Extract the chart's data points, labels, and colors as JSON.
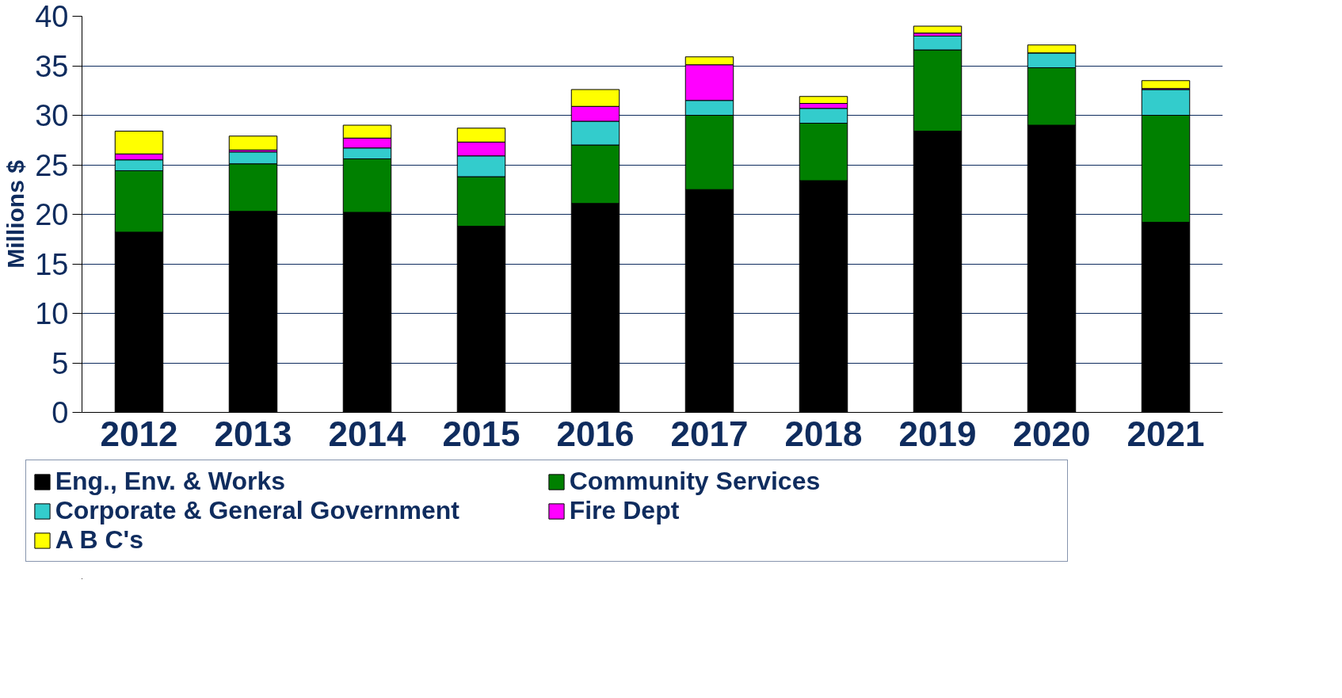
{
  "chart_data": {
    "type": "bar",
    "stacked": true,
    "ylabel": "Millions $",
    "categories": [
      "2012",
      "2013",
      "2014",
      "2015",
      "2016",
      "2017",
      "2018",
      "2019",
      "2020",
      "2021"
    ],
    "series": [
      {
        "name": "Eng., Env. & Works",
        "color": "#000000",
        "values": [
          18.2,
          20.3,
          20.2,
          18.8,
          21.1,
          22.5,
          23.4,
          28.4,
          29.0,
          19.2
        ]
      },
      {
        "name": "Community Services",
        "color": "#008000",
        "values": [
          6.2,
          4.8,
          5.4,
          5.0,
          5.9,
          7.5,
          5.8,
          8.2,
          5.8,
          10.8
        ]
      },
      {
        "name": "Corporate & General Government",
        "color": "#33cccc",
        "values": [
          1.1,
          1.2,
          1.1,
          2.1,
          2.4,
          1.5,
          1.5,
          1.4,
          1.5,
          2.6
        ]
      },
      {
        "name": "Fire Dept",
        "color": "#ff00ff",
        "values": [
          0.6,
          0.2,
          1.0,
          1.4,
          1.5,
          3.6,
          0.5,
          0.3,
          0.0,
          0.1
        ]
      },
      {
        "name": "A B C's",
        "color": "#ffff00",
        "values": [
          2.3,
          1.4,
          1.3,
          1.4,
          1.7,
          0.8,
          0.7,
          0.7,
          0.8,
          0.8
        ]
      }
    ],
    "ylim": [
      0,
      40
    ],
    "yticks": [
      0,
      5,
      10,
      15,
      20,
      25,
      30,
      35,
      40
    ],
    "grid": "y",
    "legend": "bottom"
  }
}
